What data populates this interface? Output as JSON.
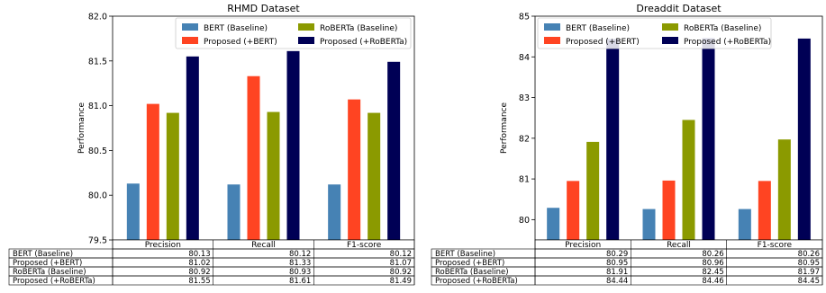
{
  "chart_data": [
    {
      "type": "bar",
      "title": "RHMD Dataset",
      "xlabel": "",
      "ylabel": "Performance",
      "ylim": [
        79.5,
        82.0
      ],
      "yticks": [
        "79.5",
        "80.0",
        "80.5",
        "81.0",
        "81.5",
        "82.0"
      ],
      "ytick_values": [
        79.5,
        80.0,
        80.5,
        81.0,
        81.5,
        82.0
      ],
      "categories": [
        "Precision",
        "Recall",
        "F1-score"
      ],
      "legend_placement": "top-right",
      "legend_columns": 2,
      "grid": false,
      "series": [
        {
          "name": "BERT (Baseline)",
          "color": "#4682b4",
          "values": [
            80.13,
            80.12,
            80.12
          ],
          "labels": [
            "80.13",
            "80.12",
            "80.12"
          ]
        },
        {
          "name": "Proposed (+BERT)",
          "color": "#ff4422",
          "values": [
            81.02,
            81.33,
            81.07
          ],
          "labels": [
            "81.02",
            "81.33",
            "81.07"
          ]
        },
        {
          "name": "RoBERTa (Baseline)",
          "color": "#8b9a00",
          "values": [
            80.92,
            80.93,
            80.92
          ],
          "labels": [
            "80.92",
            "80.93",
            "80.92"
          ]
        },
        {
          "name": "Proposed (+RoBERTa)",
          "color": "#000055",
          "values": [
            81.55,
            81.61,
            81.49
          ],
          "labels": [
            "81.55",
            "81.61",
            "81.49"
          ]
        }
      ]
    },
    {
      "type": "bar",
      "title": "Dreaddit Dataset",
      "xlabel": "",
      "ylabel": "Performance",
      "ylim": [
        79.5,
        85.0
      ],
      "yticks": [
        "80",
        "81",
        "82",
        "83",
        "84",
        "85"
      ],
      "ytick_values": [
        80,
        81,
        82,
        83,
        84,
        85
      ],
      "categories": [
        "Precision",
        "Recall",
        "F1-score"
      ],
      "legend_placement": "top-left",
      "legend_columns": 2,
      "grid": false,
      "series": [
        {
          "name": "BERT (Baseline)",
          "color": "#4682b4",
          "values": [
            80.29,
            80.26,
            80.26
          ],
          "labels": [
            "80.29",
            "80.26",
            "80.26"
          ]
        },
        {
          "name": "Proposed (+BERT)",
          "color": "#ff4422",
          "values": [
            80.95,
            80.96,
            80.95
          ],
          "labels": [
            "80.95",
            "80.96",
            "80.95"
          ]
        },
        {
          "name": "RoBERTa (Baseline)",
          "color": "#8b9a00",
          "values": [
            81.91,
            82.45,
            81.97
          ],
          "labels": [
            "81.91",
            "82.45",
            "81.97"
          ]
        },
        {
          "name": "Proposed (+RoBERTa)",
          "color": "#000055",
          "values": [
            84.44,
            84.46,
            84.45
          ],
          "labels": [
            "84.44",
            "84.46",
            "84.45"
          ]
        }
      ]
    }
  ]
}
